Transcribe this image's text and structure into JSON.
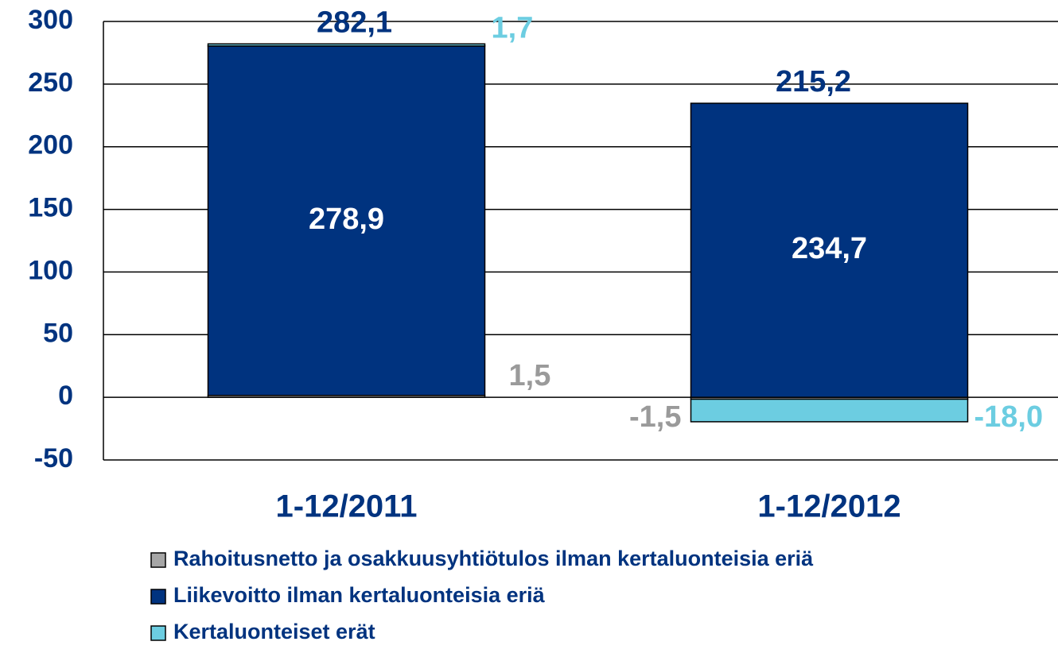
{
  "chart_data": {
    "type": "stacked_bar",
    "categories": [
      "1-12/2011",
      "1-12/2012"
    ],
    "series": [
      {
        "name": "Rahoitusnetto ja osakkuusyhtiötulos ilman kertaluonteisia eriä",
        "color": "#a6a6a6",
        "label_color": "#9a9a9a",
        "values": [
          1.5,
          -1.5
        ],
        "value_labels": [
          "1,5",
          "-1,5"
        ]
      },
      {
        "name": "Liikevoitto ilman kertaluonteisia eriä",
        "color": "#00337f",
        "label_color": "#ffffff",
        "values": [
          278.9,
          234.7
        ],
        "value_labels": [
          "278,9",
          "234,7"
        ]
      },
      {
        "name": "Kertaluonteiset erät",
        "color": "#6ccde1",
        "label_color": "#6ccde1",
        "values": [
          1.7,
          -18.0
        ],
        "value_labels": [
          "1,7",
          "-18,0"
        ]
      }
    ],
    "totals": [
      282.1,
      215.2
    ],
    "total_labels": [
      "282,1",
      "215,2"
    ],
    "ylim": [
      -50,
      300
    ],
    "yticks": [
      -50,
      0,
      50,
      100,
      150,
      200,
      250,
      300
    ],
    "grid": true
  }
}
